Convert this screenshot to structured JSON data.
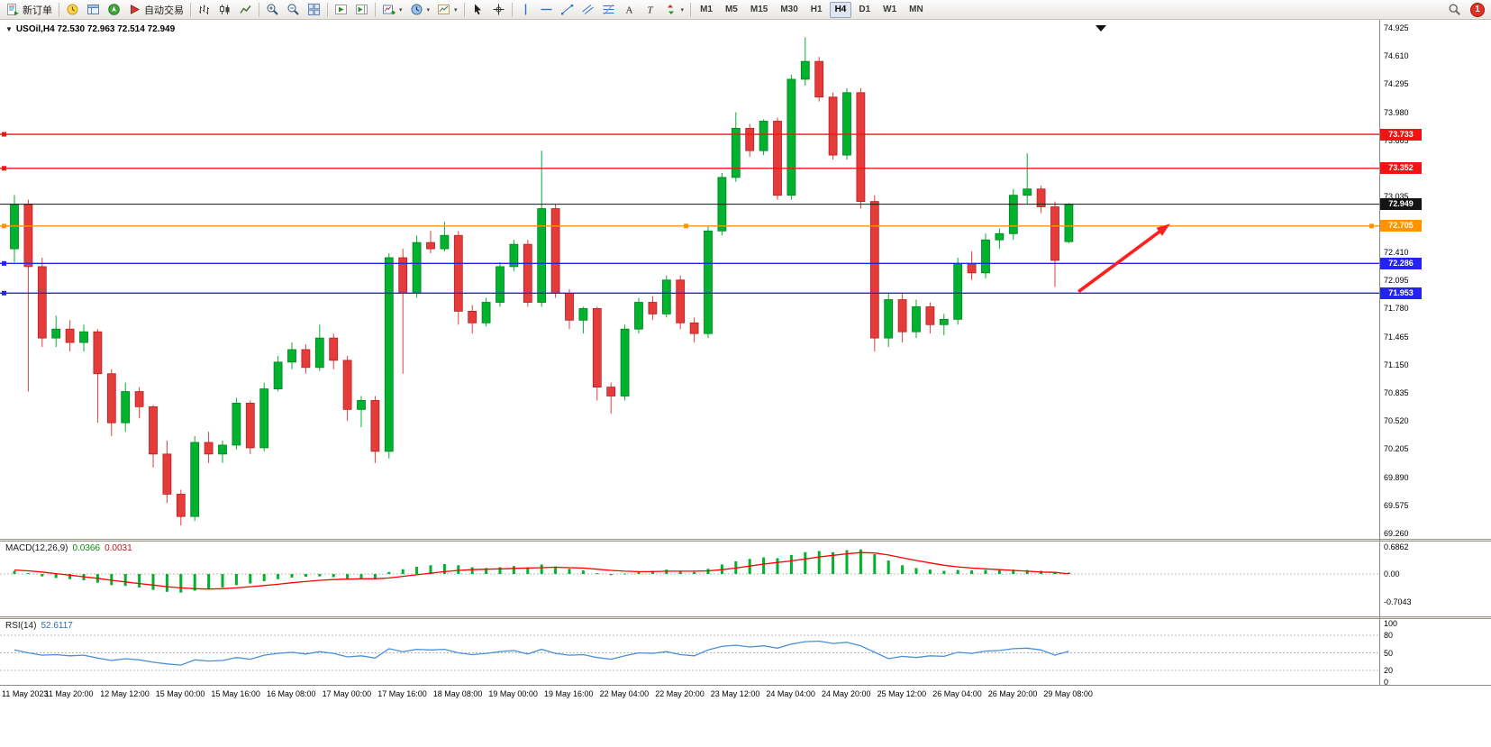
{
  "toolbar": {
    "items": [
      {
        "name": "new-order-button",
        "icon": "new-order-icon",
        "label": "新订单"
      },
      {
        "type": "sep"
      },
      {
        "name": "market-watch-button",
        "icon": "market-watch-icon"
      },
      {
        "name": "data-window-button",
        "icon": "data-window-icon"
      },
      {
        "name": "navigator-button",
        "icon": "navigator-icon"
      },
      {
        "name": "autotrade-button",
        "icon": "autotrade-icon",
        "label": "自动交易"
      },
      {
        "type": "sep"
      },
      {
        "name": "bar-chart-button",
        "icon": "bar-chart-icon"
      },
      {
        "name": "candlestick-chart-button",
        "icon": "candlestick-icon"
      },
      {
        "name": "line-chart-button",
        "icon": "line-chart-icon"
      },
      {
        "type": "sep"
      },
      {
        "name": "zoom-in-button",
        "icon": "zoom-in-icon"
      },
      {
        "name": "zoom-out-button",
        "icon": "zoom-out-icon"
      },
      {
        "name": "tile-windows-button",
        "icon": "tile-windows-icon"
      },
      {
        "type": "sep"
      },
      {
        "name": "auto-scroll-button",
        "icon": "auto-scroll-icon"
      },
      {
        "name": "chart-shift-button",
        "icon": "chart-shift-icon"
      },
      {
        "type": "sep"
      },
      {
        "name": "new-chart-button",
        "icon": "new-chart-icon",
        "caret": true
      },
      {
        "name": "profiles-button",
        "icon": "clock-icon",
        "caret": true
      },
      {
        "name": "template-button",
        "icon": "template-icon",
        "caret": true
      },
      {
        "type": "sep"
      },
      {
        "name": "cursor-button",
        "icon": "cursor-icon"
      },
      {
        "name": "crosshair-button",
        "icon": "crosshair-icon"
      },
      {
        "type": "sep"
      },
      {
        "name": "vertical-line-button",
        "icon": "vertical-line-icon"
      },
      {
        "name": "horizontal-line-button",
        "icon": "horizontal-line-icon"
      },
      {
        "name": "trendline-button",
        "icon": "trendline-icon"
      },
      {
        "name": "channel-button",
        "icon": "channel-icon"
      },
      {
        "name": "fibonacci-button",
        "icon": "fibonacci-icon"
      },
      {
        "name": "text-button",
        "icon": "text-icon"
      },
      {
        "name": "label-button",
        "icon": "label-icon"
      },
      {
        "name": "arrows-button",
        "icon": "arrows-icon",
        "caret": true
      },
      {
        "type": "sep"
      }
    ],
    "timeframes": [
      "M1",
      "M5",
      "M15",
      "M30",
      "H1",
      "H4",
      "D1",
      "W1",
      "MN"
    ],
    "active_timeframe": "H4",
    "notification_count": "1"
  },
  "chart": {
    "title": "USOil,H4 72.530 72.963 72.514 72.949",
    "symbol": "USOil",
    "timeframe": "H4",
    "ohlc": {
      "open": "72.530",
      "high": "72.963",
      "low": "72.514",
      "close": "72.949"
    },
    "levels": [
      {
        "name": "resistance-line-1",
        "label": "73.733",
        "price": 73.733,
        "color": "#f01414",
        "width": 1.4
      },
      {
        "name": "resistance-line-2",
        "label": "73.352",
        "price": 73.352,
        "color": "#f01414",
        "width": 1.4
      },
      {
        "name": "current-price-line",
        "label": "72.949",
        "price": 72.949,
        "color": "#141414",
        "width": 1,
        "kind": "price"
      },
      {
        "name": "pivot-line",
        "label": "72.705",
        "price": 72.705,
        "color": "#ff9400",
        "width": 1.4,
        "selected": true
      },
      {
        "name": "support-line-1",
        "label": "72.286",
        "price": 72.286,
        "color": "#2424f0",
        "width": 1.4
      },
      {
        "name": "support-line-2",
        "label": "71.953",
        "price": 71.953,
        "color": "#2424f0",
        "width": 1.4
      }
    ]
  },
  "indicators": {
    "macd": {
      "name": "MACD(12,26,9)",
      "value_main": "0.0366",
      "value_signal": "0.0031",
      "axis": [
        "0.6862",
        "0.00",
        "-0.7043"
      ]
    },
    "rsi": {
      "name": "RSI(14)",
      "value": "52.6117",
      "axis": [
        "100",
        "80",
        "50",
        "20",
        "0"
      ]
    }
  },
  "colors": {
    "candle_up": "#00b22d",
    "candle_up_border": "#00831f",
    "candle_down": "#e63b3b",
    "candle_down_border": "#b42121",
    "macd_histogram": "#00b22d",
    "macd_signal": "#ff0000",
    "rsi_line": "#4a90d9",
    "arrow_red": "#ff1f1f"
  },
  "chart_data": {
    "type": "candlestick",
    "symbol": "USOil",
    "timeframe": "H4",
    "ylim": [
      69.26,
      74.925
    ],
    "current_price": 72.949,
    "price_axis_ticks": [
      "74.925",
      "74.610",
      "74.295",
      "73.980",
      "73.665",
      "73.350",
      "73.035",
      "72.720",
      "72.410",
      "72.095",
      "71.780",
      "71.465",
      "71.150",
      "70.835",
      "70.520",
      "70.205",
      "69.890",
      "69.575",
      "69.260"
    ],
    "time_labels": [
      "11 May 2023",
      "11 May 20:00",
      "12 May 12:00",
      "15 May 00:00",
      "15 May 16:00",
      "16 May 08:00",
      "17 May 00:00",
      "17 May 16:00",
      "18 May 08:00",
      "19 May 00:00",
      "19 May 16:00",
      "22 May 04:00",
      "22 May 20:00",
      "23 May 12:00",
      "24 May 04:00",
      "24 May 20:00",
      "25 May 12:00",
      "26 May 04:00",
      "26 May 20:00",
      "29 May 08:00"
    ],
    "time_label_every_n_candles": 4,
    "horizontal_levels": [
      73.733,
      73.352,
      72.949,
      72.705,
      72.286,
      71.953
    ],
    "candles": [
      [
        72.45,
        73.05,
        72.3,
        72.95
      ],
      [
        72.95,
        73.0,
        70.85,
        72.25
      ],
      [
        72.25,
        72.35,
        71.35,
        71.45
      ],
      [
        71.45,
        71.7,
        71.35,
        71.55
      ],
      [
        71.55,
        71.65,
        71.3,
        71.4
      ],
      [
        71.4,
        71.6,
        71.3,
        71.52
      ],
      [
        71.52,
        71.55,
        70.5,
        71.05
      ],
      [
        71.05,
        71.1,
        70.35,
        70.5
      ],
      [
        70.5,
        70.95,
        70.4,
        70.85
      ],
      [
        70.85,
        70.9,
        70.55,
        70.68
      ],
      [
        70.68,
        70.7,
        70.0,
        70.15
      ],
      [
        70.15,
        70.3,
        69.6,
        69.7
      ],
      [
        69.7,
        69.75,
        69.35,
        69.45
      ],
      [
        69.45,
        70.35,
        69.4,
        70.28
      ],
      [
        70.28,
        70.4,
        70.05,
        70.15
      ],
      [
        70.15,
        70.3,
        70.05,
        70.25
      ],
      [
        70.25,
        70.78,
        70.2,
        70.72
      ],
      [
        70.72,
        70.75,
        70.15,
        70.22
      ],
      [
        70.22,
        70.95,
        70.18,
        70.88
      ],
      [
        70.88,
        71.25,
        70.85,
        71.18
      ],
      [
        71.18,
        71.4,
        71.1,
        71.32
      ],
      [
        71.32,
        71.38,
        71.05,
        71.12
      ],
      [
        71.12,
        71.6,
        71.08,
        71.45
      ],
      [
        71.45,
        71.5,
        71.1,
        71.2
      ],
      [
        71.2,
        71.25,
        70.52,
        70.65
      ],
      [
        70.65,
        70.8,
        70.45,
        70.75
      ],
      [
        70.75,
        70.8,
        70.05,
        70.18
      ],
      [
        70.18,
        72.4,
        70.1,
        72.35
      ],
      [
        72.35,
        72.45,
        71.05,
        71.95
      ],
      [
        71.95,
        72.6,
        71.9,
        72.52
      ],
      [
        72.52,
        72.65,
        72.4,
        72.45
      ],
      [
        72.45,
        72.75,
        72.42,
        72.6
      ],
      [
        72.6,
        72.65,
        71.6,
        71.75
      ],
      [
        71.75,
        71.82,
        71.5,
        71.62
      ],
      [
        71.62,
        71.9,
        71.58,
        71.85
      ],
      [
        71.85,
        72.3,
        71.8,
        72.25
      ],
      [
        72.25,
        72.55,
        72.2,
        72.5
      ],
      [
        72.5,
        72.55,
        71.8,
        71.85
      ],
      [
        71.85,
        73.55,
        71.8,
        72.9
      ],
      [
        72.9,
        72.95,
        71.9,
        71.95
      ],
      [
        71.95,
        72.0,
        71.55,
        71.65
      ],
      [
        71.65,
        71.8,
        71.5,
        71.78
      ],
      [
        71.78,
        71.8,
        70.75,
        70.9
      ],
      [
        70.9,
        70.95,
        70.6,
        70.8
      ],
      [
        70.8,
        71.6,
        70.75,
        71.55
      ],
      [
        71.55,
        71.9,
        71.5,
        71.85
      ],
      [
        71.85,
        71.92,
        71.65,
        71.72
      ],
      [
        71.72,
        72.15,
        71.68,
        72.1
      ],
      [
        72.1,
        72.15,
        71.55,
        71.62
      ],
      [
        71.62,
        71.68,
        71.4,
        71.5
      ],
      [
        71.5,
        72.7,
        71.45,
        72.65
      ],
      [
        72.65,
        73.3,
        72.6,
        73.25
      ],
      [
        73.25,
        73.98,
        73.2,
        73.8
      ],
      [
        73.8,
        73.85,
        73.48,
        73.55
      ],
      [
        73.55,
        73.9,
        73.5,
        73.88
      ],
      [
        73.88,
        73.92,
        73.0,
        73.05
      ],
      [
        73.05,
        74.4,
        73.0,
        74.35
      ],
      [
        74.35,
        74.82,
        74.28,
        74.55
      ],
      [
        74.55,
        74.6,
        74.1,
        74.15
      ],
      [
        74.15,
        74.2,
        73.45,
        73.5
      ],
      [
        73.5,
        74.25,
        73.45,
        74.2
      ],
      [
        74.2,
        74.25,
        72.9,
        72.98
      ],
      [
        72.98,
        73.05,
        71.3,
        71.45
      ],
      [
        71.45,
        71.95,
        71.35,
        71.88
      ],
      [
        71.88,
        71.95,
        71.4,
        71.52
      ],
      [
        71.52,
        71.88,
        71.45,
        71.8
      ],
      [
        71.8,
        71.85,
        71.5,
        71.6
      ],
      [
        71.6,
        71.72,
        71.48,
        71.66
      ],
      [
        71.66,
        72.35,
        71.6,
        72.28
      ],
      [
        72.28,
        72.42,
        72.1,
        72.18
      ],
      [
        72.18,
        72.62,
        72.12,
        72.55
      ],
      [
        72.55,
        72.68,
        72.45,
        72.62
      ],
      [
        72.62,
        73.12,
        72.55,
        73.05
      ],
      [
        73.05,
        73.52,
        72.95,
        73.12
      ],
      [
        73.12,
        73.16,
        72.85,
        72.92
      ],
      [
        72.92,
        72.98,
        72.02,
        72.32
      ],
      [
        72.53,
        72.963,
        72.514,
        72.949
      ]
    ],
    "macd_ylim": [
      -0.7043,
      0.6862
    ],
    "macd_histogram": [
      0.08,
      0.02,
      -0.06,
      -0.1,
      -0.13,
      -0.16,
      -0.22,
      -0.28,
      -0.3,
      -0.34,
      -0.4,
      -0.45,
      -0.47,
      -0.42,
      -0.38,
      -0.34,
      -0.28,
      -0.24,
      -0.18,
      -0.13,
      -0.09,
      -0.07,
      -0.06,
      -0.08,
      -0.12,
      -0.11,
      -0.13,
      0.05,
      0.12,
      0.18,
      0.22,
      0.25,
      0.22,
      0.17,
      0.15,
      0.17,
      0.2,
      0.17,
      0.24,
      0.19,
      0.13,
      0.09,
      0.02,
      -0.03,
      0.01,
      0.05,
      0.08,
      0.11,
      0.08,
      0.05,
      0.13,
      0.24,
      0.32,
      0.38,
      0.42,
      0.4,
      0.48,
      0.55,
      0.58,
      0.55,
      0.6,
      0.62,
      0.5,
      0.34,
      0.22,
      0.15,
      0.11,
      0.08,
      0.1,
      0.09,
      0.1,
      0.1,
      0.11,
      0.1,
      0.08,
      0.05,
      0.0366
    ],
    "macd_signal": [
      0.1,
      0.08,
      0.05,
      0.01,
      -0.03,
      -0.07,
      -0.11,
      -0.16,
      -0.2,
      -0.24,
      -0.28,
      -0.32,
      -0.35,
      -0.37,
      -0.38,
      -0.37,
      -0.35,
      -0.32,
      -0.29,
      -0.26,
      -0.22,
      -0.19,
      -0.16,
      -0.14,
      -0.13,
      -0.12,
      -0.12,
      -0.1,
      -0.06,
      -0.02,
      0.02,
      0.06,
      0.09,
      0.11,
      0.12,
      0.13,
      0.14,
      0.15,
      0.16,
      0.17,
      0.16,
      0.15,
      0.12,
      0.09,
      0.07,
      0.06,
      0.06,
      0.07,
      0.07,
      0.07,
      0.08,
      0.11,
      0.15,
      0.2,
      0.25,
      0.29,
      0.33,
      0.38,
      0.43,
      0.47,
      0.51,
      0.54,
      0.53,
      0.48,
      0.41,
      0.34,
      0.28,
      0.22,
      0.18,
      0.15,
      0.13,
      0.11,
      0.09,
      0.07,
      0.05,
      0.04,
      0.0031
    ],
    "rsi_ylim": [
      0,
      100
    ],
    "rsi_values": [
      55,
      50,
      46,
      47,
      45,
      46,
      41,
      37,
      40,
      38,
      34,
      31,
      29,
      38,
      36,
      37,
      42,
      39,
      46,
      49,
      51,
      48,
      52,
      49,
      43,
      45,
      41,
      57,
      52,
      56,
      55,
      56,
      50,
      47,
      49,
      52,
      54,
      48,
      56,
      49,
      46,
      47,
      42,
      39,
      45,
      50,
      49,
      52,
      47,
      45,
      55,
      61,
      63,
      60,
      62,
      58,
      65,
      69,
      70,
      66,
      68,
      62,
      51,
      40,
      44,
      42,
      45,
      44,
      51,
      49,
      53,
      54,
      57,
      58,
      55,
      46,
      52.6117
    ],
    "annotation_arrow": {
      "from_index": 76.7,
      "from_price": 71.97,
      "to_index": 83.3,
      "to_price": 72.73,
      "color": "#ff1f1f",
      "note": "red upward arrow pointing toward 72.705 level"
    }
  }
}
